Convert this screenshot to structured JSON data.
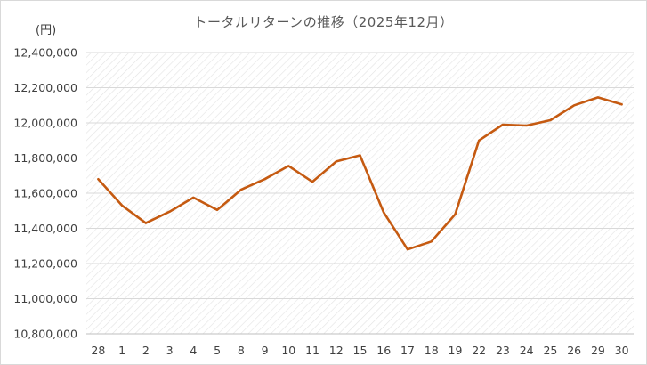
{
  "chart_data": {
    "type": "line",
    "title": "トータルリターンの推移（2025年12月）",
    "unit_label": "(円)",
    "categories": [
      "28",
      "1",
      "2",
      "3",
      "4",
      "5",
      "8",
      "9",
      "10",
      "11",
      "12",
      "15",
      "16",
      "17",
      "18",
      "19",
      "22",
      "23",
      "24",
      "25",
      "26",
      "29",
      "30"
    ],
    "series": [
      {
        "values": [
          11680000,
          11530000,
          11430000,
          11495000,
          11575000,
          11505000,
          11620000,
          11680000,
          11755000,
          11665000,
          11780000,
          11815000,
          11490000,
          11280000,
          11325000,
          11480000,
          11900000,
          11990000,
          11985000,
          12015000,
          12100000,
          12145000,
          12105000
        ],
        "color": "#c55a11"
      }
    ],
    "yticks": [
      "10,800,000",
      "11,000,000",
      "11,200,000",
      "11,400,000",
      "11,600,000",
      "11,800,000",
      "12,000,000",
      "12,200,000",
      "12,400,000"
    ],
    "ylim": [
      10800000,
      12400000
    ],
    "grid": true,
    "legend": "none"
  }
}
